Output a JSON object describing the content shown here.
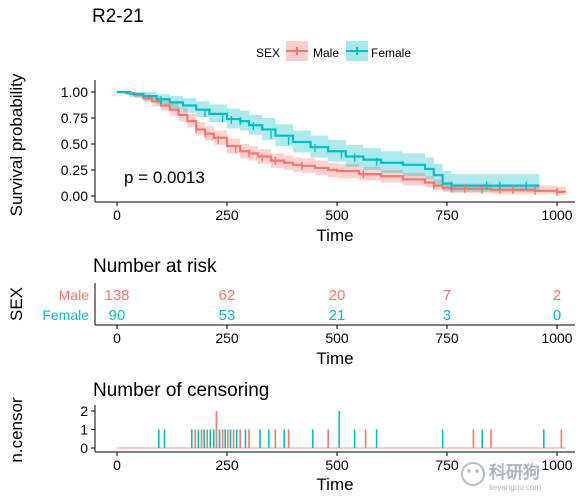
{
  "colors": {
    "male": "#F8766D",
    "female": "#00BFC4",
    "axis": "#000000",
    "text": "#000000"
  },
  "chart_data": {
    "type": "line",
    "title": "R2-21",
    "legend": {
      "title": "SEX",
      "placement": "top",
      "entries": [
        "Male",
        "Female"
      ]
    },
    "survival": {
      "xlabel": "Time",
      "ylabel": "Survival probability",
      "xlim": [
        0,
        1050
      ],
      "ylim": [
        0,
        1
      ],
      "xticks": [
        "0",
        "250",
        "500",
        "750",
        "1000"
      ],
      "yticks": [
        "0.00",
        "0.25",
        "0.50",
        "0.75",
        "1.00"
      ],
      "pvalue": "p = 0.0013",
      "series": [
        {
          "name": "Male",
          "x": [
            0,
            20,
            40,
            60,
            80,
            100,
            120,
            140,
            160,
            180,
            200,
            220,
            250,
            280,
            300,
            320,
            350,
            380,
            400,
            420,
            450,
            480,
            500,
            550,
            600,
            650,
            700,
            720,
            740,
            760,
            800,
            850,
            900,
            950,
            1000,
            1020
          ],
          "y": [
            1.0,
            0.99,
            0.97,
            0.94,
            0.91,
            0.87,
            0.83,
            0.78,
            0.72,
            0.64,
            0.6,
            0.56,
            0.48,
            0.43,
            0.41,
            0.38,
            0.34,
            0.32,
            0.3,
            0.29,
            0.27,
            0.25,
            0.24,
            0.21,
            0.19,
            0.16,
            0.13,
            0.1,
            0.08,
            0.07,
            0.07,
            0.06,
            0.06,
            0.05,
            0.04,
            0.04
          ],
          "lower": [
            1.0,
            0.97,
            0.94,
            0.9,
            0.86,
            0.82,
            0.77,
            0.72,
            0.66,
            0.58,
            0.53,
            0.49,
            0.41,
            0.36,
            0.34,
            0.31,
            0.27,
            0.25,
            0.23,
            0.22,
            0.2,
            0.18,
            0.17,
            0.15,
            0.13,
            0.1,
            0.08,
            0.06,
            0.04,
            0.03,
            0.03,
            0.02,
            0.02,
            0.02,
            0.01,
            0.01
          ],
          "upper": [
            1.0,
            1.0,
            0.99,
            0.98,
            0.96,
            0.93,
            0.89,
            0.85,
            0.79,
            0.71,
            0.67,
            0.63,
            0.55,
            0.5,
            0.48,
            0.45,
            0.41,
            0.39,
            0.37,
            0.36,
            0.34,
            0.32,
            0.31,
            0.28,
            0.25,
            0.22,
            0.19,
            0.16,
            0.13,
            0.12,
            0.12,
            0.11,
            0.11,
            0.1,
            0.09,
            0.09
          ],
          "censor_x": [
            180,
            200,
            230,
            270,
            300,
            330,
            360,
            420,
            560,
            720,
            760,
            790,
            830,
            870,
            900,
            950,
            1000
          ],
          "censor_y": [
            0.64,
            0.6,
            0.54,
            0.45,
            0.41,
            0.37,
            0.34,
            0.29,
            0.21,
            0.1,
            0.07,
            0.07,
            0.06,
            0.06,
            0.06,
            0.05,
            0.04
          ]
        },
        {
          "name": "Female",
          "x": [
            0,
            30,
            60,
            90,
            120,
            150,
            180,
            210,
            250,
            280,
            300,
            330,
            360,
            400,
            440,
            480,
            520,
            560,
            600,
            650,
            700,
            720,
            740,
            760,
            800,
            850,
            900,
            960
          ],
          "y": [
            1.0,
            0.98,
            0.96,
            0.93,
            0.9,
            0.87,
            0.83,
            0.79,
            0.74,
            0.72,
            0.68,
            0.64,
            0.58,
            0.52,
            0.47,
            0.43,
            0.38,
            0.35,
            0.32,
            0.3,
            0.26,
            0.2,
            0.12,
            0.1,
            0.1,
            0.1,
            0.1,
            0.1
          ],
          "lower": [
            1.0,
            0.95,
            0.92,
            0.88,
            0.84,
            0.8,
            0.76,
            0.71,
            0.65,
            0.63,
            0.59,
            0.54,
            0.48,
            0.42,
            0.37,
            0.33,
            0.28,
            0.25,
            0.22,
            0.19,
            0.16,
            0.11,
            0.05,
            0.04,
            0.04,
            0.04,
            0.04,
            0.04
          ],
          "upper": [
            1.0,
            1.0,
            1.0,
            0.98,
            0.96,
            0.94,
            0.91,
            0.88,
            0.84,
            0.82,
            0.78,
            0.75,
            0.69,
            0.63,
            0.58,
            0.54,
            0.49,
            0.46,
            0.43,
            0.41,
            0.37,
            0.31,
            0.24,
            0.21,
            0.21,
            0.21,
            0.21,
            0.21
          ],
          "censor_x": [
            100,
            200,
            240,
            260,
            280,
            310,
            350,
            390,
            450,
            510,
            540,
            590,
            760,
            840,
            870,
            930
          ],
          "censor_y": [
            0.92,
            0.8,
            0.75,
            0.73,
            0.72,
            0.67,
            0.59,
            0.53,
            0.46,
            0.4,
            0.37,
            0.33,
            0.1,
            0.1,
            0.1,
            0.1
          ]
        }
      ]
    },
    "risk_table": {
      "title": "Number at risk",
      "ylabel": "SEX",
      "xlabel": "Time",
      "xticks": [
        "0",
        "250",
        "500",
        "750",
        "1000"
      ],
      "times": [
        0,
        250,
        500,
        750,
        1000
      ],
      "rows": [
        {
          "name": "Male",
          "values": [
            "138",
            "62",
            "20",
            "7",
            "2"
          ]
        },
        {
          "name": "Female",
          "values": [
            "90",
            "53",
            "21",
            "3",
            "0"
          ]
        }
      ]
    },
    "censoring": {
      "title": "Number of censoring",
      "ylabel": "n.censor",
      "xlabel": "Time",
      "xticks": [
        "0",
        "250",
        "500",
        "750",
        "1000"
      ],
      "yticks": [
        "0",
        "1",
        "2"
      ],
      "ylim": [
        0,
        2
      ],
      "events": [
        {
          "x": 95,
          "n": 1,
          "s": "Female"
        },
        {
          "x": 108,
          "n": 1,
          "s": "Female"
        },
        {
          "x": 170,
          "n": 1,
          "s": "Female"
        },
        {
          "x": 178,
          "n": 1,
          "s": "Male"
        },
        {
          "x": 185,
          "n": 1,
          "s": "Female"
        },
        {
          "x": 192,
          "n": 1,
          "s": "Male"
        },
        {
          "x": 198,
          "n": 1,
          "s": "Female"
        },
        {
          "x": 205,
          "n": 1,
          "s": "Male"
        },
        {
          "x": 212,
          "n": 1,
          "s": "Female"
        },
        {
          "x": 220,
          "n": 1,
          "s": "Female"
        },
        {
          "x": 226,
          "n": 2,
          "s": "Male"
        },
        {
          "x": 233,
          "n": 1,
          "s": "Female"
        },
        {
          "x": 240,
          "n": 1,
          "s": "Male"
        },
        {
          "x": 246,
          "n": 1,
          "s": "Female"
        },
        {
          "x": 252,
          "n": 1,
          "s": "Male"
        },
        {
          "x": 258,
          "n": 1,
          "s": "Female"
        },
        {
          "x": 265,
          "n": 1,
          "s": "Male"
        },
        {
          "x": 272,
          "n": 1,
          "s": "Female"
        },
        {
          "x": 280,
          "n": 1,
          "s": "Male"
        },
        {
          "x": 292,
          "n": 1,
          "s": "Female"
        },
        {
          "x": 300,
          "n": 1,
          "s": "Male"
        },
        {
          "x": 325,
          "n": 1,
          "s": "Female"
        },
        {
          "x": 345,
          "n": 1,
          "s": "Female"
        },
        {
          "x": 360,
          "n": 1,
          "s": "Male"
        },
        {
          "x": 380,
          "n": 1,
          "s": "Female"
        },
        {
          "x": 390,
          "n": 1,
          "s": "Male"
        },
        {
          "x": 445,
          "n": 1,
          "s": "Female"
        },
        {
          "x": 480,
          "n": 1,
          "s": "Male"
        },
        {
          "x": 505,
          "n": 2,
          "s": "Female"
        },
        {
          "x": 540,
          "n": 1,
          "s": "Female"
        },
        {
          "x": 565,
          "n": 1,
          "s": "Male"
        },
        {
          "x": 590,
          "n": 1,
          "s": "Female"
        },
        {
          "x": 740,
          "n": 1,
          "s": "Female"
        },
        {
          "x": 810,
          "n": 1,
          "s": "Male"
        },
        {
          "x": 830,
          "n": 1,
          "s": "Female"
        },
        {
          "x": 850,
          "n": 1,
          "s": "Male"
        },
        {
          "x": 970,
          "n": 1,
          "s": "Female"
        },
        {
          "x": 1010,
          "n": 1,
          "s": "Male"
        }
      ]
    }
  },
  "watermark": {
    "text": "科研狗",
    "sub": "keyangou.com"
  }
}
